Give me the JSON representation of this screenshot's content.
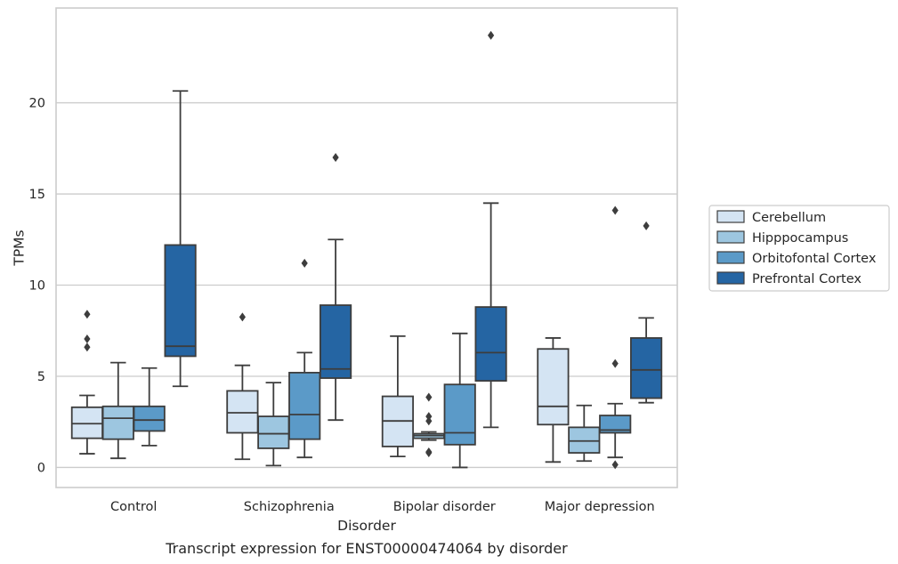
{
  "caption": "Transcript expression for ENST00000474064 by disorder",
  "chart_data": {
    "type": "boxplot",
    "xlabel": "Disorder",
    "ylabel": "TPMs",
    "ylim": [
      -1.1,
      25.2
    ],
    "yticks": [
      0,
      5,
      10,
      15,
      20
    ],
    "grid": "horizontal",
    "legend_position": "right",
    "categories": [
      "Control",
      "Schizophrenia",
      "Bipolar disorder",
      "Major depression"
    ],
    "series": [
      {
        "name": "Cerebellum",
        "color": "#d4e4f3",
        "boxes": [
          {
            "whislo": 0.75,
            "q1": 1.6,
            "med": 2.4,
            "q3": 3.3,
            "whishi": 3.95,
            "fliers": [
              8.4,
              7.05,
              6.6
            ]
          },
          {
            "whislo": 0.45,
            "q1": 1.9,
            "med": 3.0,
            "q3": 4.2,
            "whishi": 5.6,
            "fliers": [
              8.25
            ]
          },
          {
            "whislo": 0.6,
            "q1": 1.15,
            "med": 2.55,
            "q3": 3.9,
            "whishi": 7.2,
            "fliers": []
          },
          {
            "whislo": 0.3,
            "q1": 2.35,
            "med": 3.35,
            "q3": 6.5,
            "whishi": 7.1,
            "fliers": []
          }
        ]
      },
      {
        "name": "Hipppocampus",
        "color": "#9dc6e0",
        "boxes": [
          {
            "whislo": 0.5,
            "q1": 1.55,
            "med": 2.7,
            "q3": 3.35,
            "whishi": 5.75,
            "fliers": []
          },
          {
            "whislo": 0.1,
            "q1": 1.05,
            "med": 1.85,
            "q3": 2.8,
            "whishi": 4.65,
            "fliers": []
          },
          {
            "whislo": 1.5,
            "q1": 1.6,
            "med": 1.75,
            "q3": 1.85,
            "whishi": 1.95,
            "fliers": [
              0.85,
              0.8,
              2.55,
              2.8,
              3.85
            ]
          },
          {
            "whislo": 0.35,
            "q1": 0.8,
            "med": 1.45,
            "q3": 2.2,
            "whishi": 3.4,
            "fliers": []
          }
        ]
      },
      {
        "name": "Orbitofontal Cortex",
        "color": "#5b9ac8",
        "boxes": [
          {
            "whislo": 1.2,
            "q1": 2.0,
            "med": 2.6,
            "q3": 3.35,
            "whishi": 5.45,
            "fliers": []
          },
          {
            "whislo": 0.55,
            "q1": 1.55,
            "med": 2.9,
            "q3": 5.2,
            "whishi": 6.3,
            "fliers": [
              11.2
            ]
          },
          {
            "whislo": 0.0,
            "q1": 1.25,
            "med": 1.9,
            "q3": 4.55,
            "whishi": 7.35,
            "fliers": []
          },
          {
            "whislo": 0.55,
            "q1": 1.9,
            "med": 2.05,
            "q3": 2.85,
            "whishi": 3.5,
            "fliers": [
              14.1,
              5.7,
              0.15
            ]
          }
        ]
      },
      {
        "name": "Prefrontal Cortex",
        "color": "#2565a3",
        "boxes": [
          {
            "whislo": 4.45,
            "q1": 6.1,
            "med": 6.65,
            "q3": 12.2,
            "whishi": 20.65,
            "fliers": []
          },
          {
            "whislo": 2.6,
            "q1": 4.9,
            "med": 5.4,
            "q3": 8.9,
            "whishi": 12.5,
            "fliers": [
              17.0
            ]
          },
          {
            "whislo": 2.2,
            "q1": 4.75,
            "med": 6.3,
            "q3": 8.8,
            "whishi": 14.5,
            "fliers": [
              23.7
            ]
          },
          {
            "whislo": 3.55,
            "q1": 3.8,
            "med": 5.35,
            "q3": 7.1,
            "whishi": 8.2,
            "fliers": [
              13.25
            ]
          }
        ]
      }
    ]
  }
}
